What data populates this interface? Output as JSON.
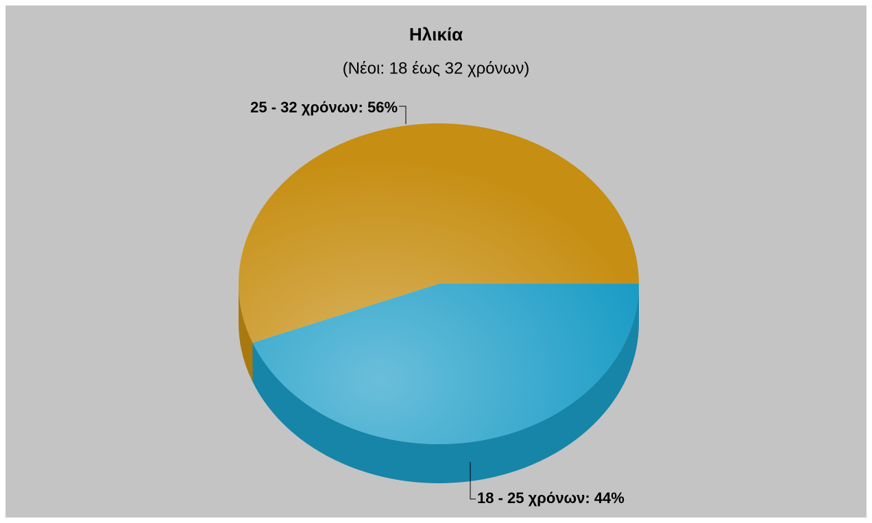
{
  "chart_data": {
    "type": "pie",
    "title": "Ηλικία",
    "subtitle": "(Νέοι: 18 έως 32 χρόνων)",
    "values": [
      56,
      44
    ],
    "value_labels": [
      "25 - 32 χρόνων: 56%",
      "18 - 25 χρόνων: 44%"
    ],
    "colors": [
      "#c68e12",
      "#1a9cc6"
    ]
  }
}
